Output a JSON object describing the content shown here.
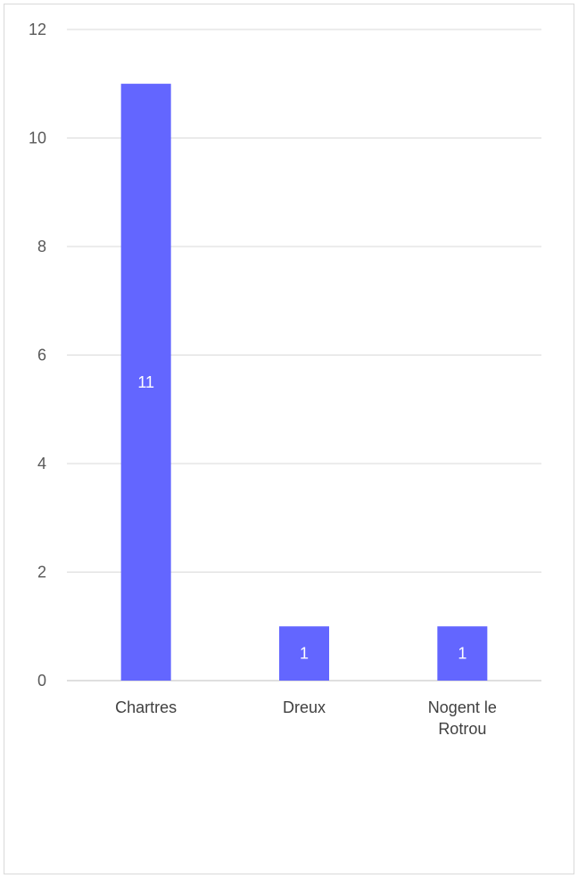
{
  "chart_data": {
    "type": "bar",
    "categories": [
      [
        "Chartres"
      ],
      [
        "Dreux"
      ],
      [
        "Nogent le",
        "Rotrou"
      ]
    ],
    "values": [
      11,
      1,
      1
    ],
    "data_labels": [
      "11",
      "1",
      "1"
    ],
    "title": "",
    "xlabel": "",
    "ylabel": "",
    "ylim": [
      0,
      12
    ],
    "yticks": [
      0,
      2,
      4,
      6,
      8,
      10,
      12
    ],
    "grid": true,
    "legend": "none",
    "bar_color": "#6366ff",
    "grid_color": "#d9d9d9"
  }
}
